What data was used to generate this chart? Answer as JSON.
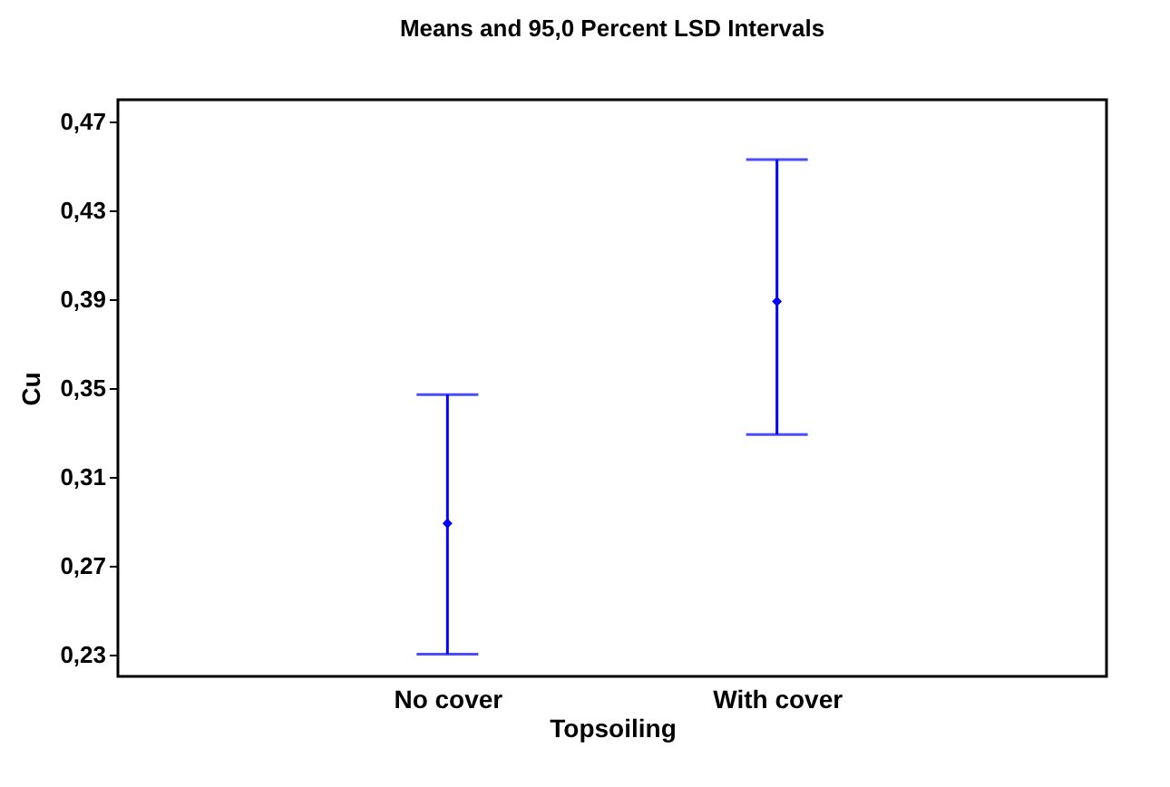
{
  "chart_data": {
    "type": "scatter",
    "title": "Means and 95,0 Percent LSD Intervals",
    "xlabel": "Topsoiling",
    "ylabel": "Cu",
    "categories": [
      "No cover",
      "With cover"
    ],
    "series": [
      {
        "color": "#0000ff",
        "values": [
          0.289,
          0.389
        ],
        "errors": [
          [
            0.23,
            0.347
          ],
          [
            0.329,
            0.453
          ]
        ]
      }
    ],
    "ylim": [
      0.22,
      0.48
    ],
    "yticks": [
      {
        "value": 0.23,
        "label": "0,23"
      },
      {
        "value": 0.27,
        "label": "0,27"
      },
      {
        "value": 0.31,
        "label": "0,31"
      },
      {
        "value": 0.35,
        "label": "0,35"
      },
      {
        "value": 0.39,
        "label": "0,39"
      },
      {
        "value": 0.43,
        "label": "0,43"
      },
      {
        "value": 0.47,
        "label": "0,47"
      }
    ],
    "grid": false,
    "marker": "diamond"
  }
}
